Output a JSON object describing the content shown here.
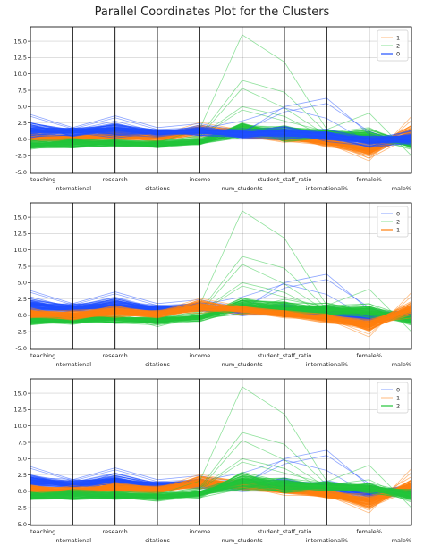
{
  "figure": {
    "title": "Parallel Coordinates Plot for the Clusters"
  },
  "colors": {
    "blue": "#1f4fff",
    "orange": "#ff7f0e",
    "green": "#22c53a",
    "axis_line": "#000000",
    "grid": "#cccccc"
  },
  "chart_data": [
    {
      "type": "line",
      "subtype": "parallel-coordinates",
      "title": "Parallel Coordinates Plot for the Clusters",
      "x": [
        "teaching",
        "international",
        "research",
        "citations",
        "income",
        "num_students",
        "student_staff_ratio",
        "international%",
        "female%",
        "male%"
      ],
      "ylim": [
        -5.2,
        17.2
      ],
      "yticks": [
        -5.0,
        -2.5,
        0.0,
        2.5,
        5.0,
        7.5,
        10.0,
        12.5,
        15.0
      ],
      "legend": [
        "1",
        "2",
        "0"
      ],
      "legend_position": "top-right",
      "grid": true,
      "series": [
        {
          "name": "1",
          "color": "#ff7f0e",
          "draw_order": 1,
          "values": [
            0.3,
            0.0,
            0.6,
            0.2,
            1.4,
            0.9,
            0.2,
            -0.3,
            -1.6,
            1.0
          ]
        },
        {
          "name": "2",
          "color": "#22c53a",
          "draw_order": 2,
          "values": [
            -0.8,
            -0.6,
            -0.6,
            -0.8,
            -0.4,
            1.5,
            1.0,
            0.8,
            0.6,
            -0.6
          ]
        },
        {
          "name": "0",
          "color": "#1f4fff",
          "draw_order": 3,
          "values": [
            1.5,
            1.1,
            1.6,
            1.0,
            1.2,
            0.8,
            1.0,
            0.6,
            -0.3,
            0.2
          ]
        }
      ]
    },
    {
      "type": "line",
      "subtype": "parallel-coordinates",
      "x": [
        "teaching",
        "international",
        "research",
        "citations",
        "income",
        "num_students",
        "student_staff_ratio",
        "international%",
        "female%",
        "male%"
      ],
      "ylim": [
        -5.2,
        17.2
      ],
      "yticks": [
        -5.0,
        -2.5,
        0.0,
        2.5,
        5.0,
        7.5,
        10.0,
        12.5,
        15.0
      ],
      "legend": [
        "0",
        "2",
        "1"
      ],
      "legend_position": "top-right",
      "grid": true,
      "series": [
        {
          "name": "0",
          "color": "#1f4fff",
          "draw_order": 1,
          "values": [
            1.5,
            1.1,
            1.6,
            1.0,
            1.2,
            0.8,
            1.0,
            0.6,
            -0.3,
            0.2
          ]
        },
        {
          "name": "2",
          "color": "#22c53a",
          "draw_order": 2,
          "values": [
            -0.8,
            -0.6,
            -0.6,
            -0.8,
            -0.4,
            1.5,
            1.0,
            0.8,
            0.6,
            -0.6
          ]
        },
        {
          "name": "1",
          "color": "#ff7f0e",
          "draw_order": 3,
          "values": [
            0.3,
            0.0,
            0.6,
            0.2,
            1.4,
            0.9,
            0.2,
            -0.3,
            -1.6,
            1.0
          ]
        }
      ]
    },
    {
      "type": "line",
      "subtype": "parallel-coordinates",
      "x": [
        "teaching",
        "international",
        "research",
        "citations",
        "income",
        "num_students",
        "student_staff_ratio",
        "international%",
        "female%",
        "male%"
      ],
      "ylim": [
        -5.2,
        17.2
      ],
      "yticks": [
        -5.0,
        -2.5,
        0.0,
        2.5,
        5.0,
        7.5,
        10.0,
        12.5,
        15.0
      ],
      "legend": [
        "0",
        "1",
        "2"
      ],
      "legend_position": "top-right",
      "grid": true,
      "series": [
        {
          "name": "0",
          "color": "#1f4fff",
          "draw_order": 1,
          "values": [
            1.5,
            1.1,
            1.6,
            1.0,
            1.2,
            0.8,
            1.0,
            0.6,
            -0.3,
            0.2
          ]
        },
        {
          "name": "1",
          "color": "#ff7f0e",
          "draw_order": 2,
          "values": [
            0.3,
            0.0,
            0.6,
            0.2,
            1.4,
            0.9,
            0.2,
            -0.3,
            -1.6,
            1.0
          ]
        },
        {
          "name": "2",
          "color": "#22c53a",
          "draw_order": 3,
          "values": [
            -0.8,
            -0.6,
            -0.6,
            -0.8,
            -0.4,
            1.5,
            1.0,
            0.8,
            0.6,
            -0.6
          ]
        }
      ]
    }
  ]
}
